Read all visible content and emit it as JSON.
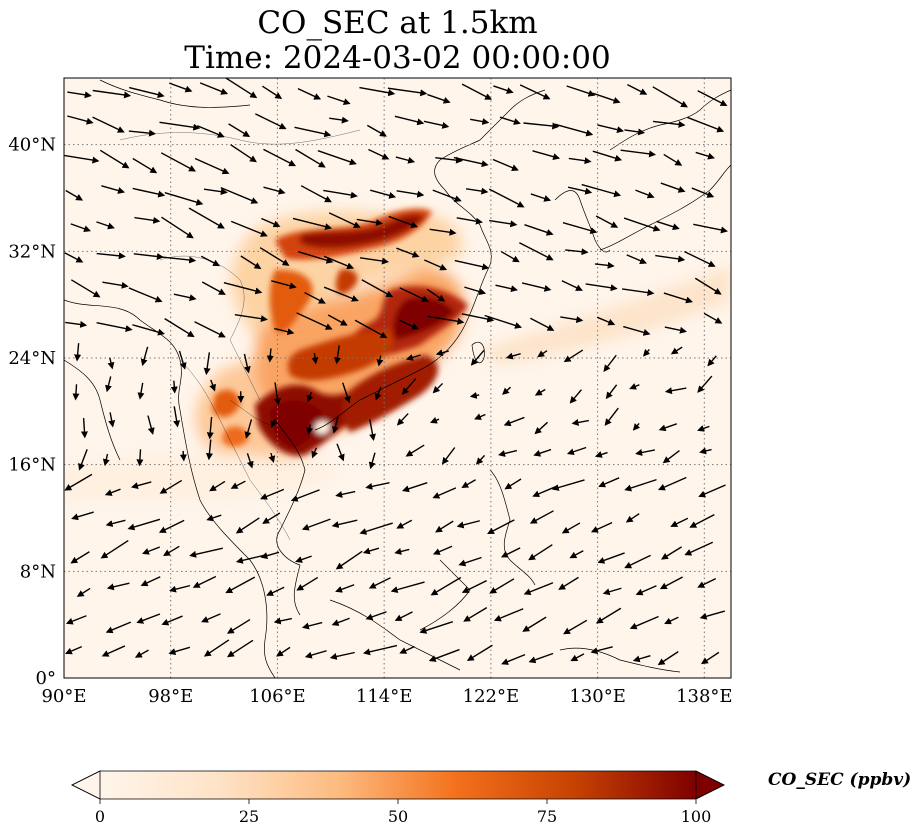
{
  "title": {
    "line1": "CO_SEC at 1.5km",
    "line2": "Time: 2024-03-02 00:00:00"
  },
  "map": {
    "lon_range": [
      90,
      140
    ],
    "lat_range": [
      0,
      45
    ],
    "lon_ticks": [
      "90°E",
      "98°E",
      "106°E",
      "114°E",
      "122°E",
      "130°E",
      "138°E"
    ],
    "lat_ticks": [
      "0°",
      "8°N",
      "16°N",
      "24°N",
      "32°N",
      "40°N"
    ],
    "gridlines": "dotted"
  },
  "colorbar": {
    "label": "CO_SEC (ppbv)",
    "ticks": [
      "0",
      "25",
      "50",
      "75",
      "100"
    ],
    "min": 0,
    "max": 100,
    "extend": "both",
    "colormap": [
      "#fff5eb",
      "#fdd9b4",
      "#fda762",
      "#f3701b",
      "#c54102",
      "#7f0000"
    ]
  },
  "chart_data": {
    "type": "heatmap",
    "variable": "CO_SEC",
    "units": "ppbv",
    "level": "1.5km",
    "time": "2024-03-02 00:00:00",
    "plumes": [
      {
        "lon": [
          104,
          119
        ],
        "lat": [
          28,
          35
        ],
        "level": 85
      },
      {
        "lon": [
          109,
          121
        ],
        "lat": [
          22,
          30
        ],
        "level": 90
      },
      {
        "lon": [
          104,
          114
        ],
        "lat": [
          17,
          24
        ],
        "level": 100
      },
      {
        "lon": [
          98,
          107
        ],
        "lat": [
          17,
          23
        ],
        "level": 45
      },
      {
        "lon": [
          120,
          140
        ],
        "lat": [
          24,
          31
        ],
        "level": 20
      }
    ]
  }
}
